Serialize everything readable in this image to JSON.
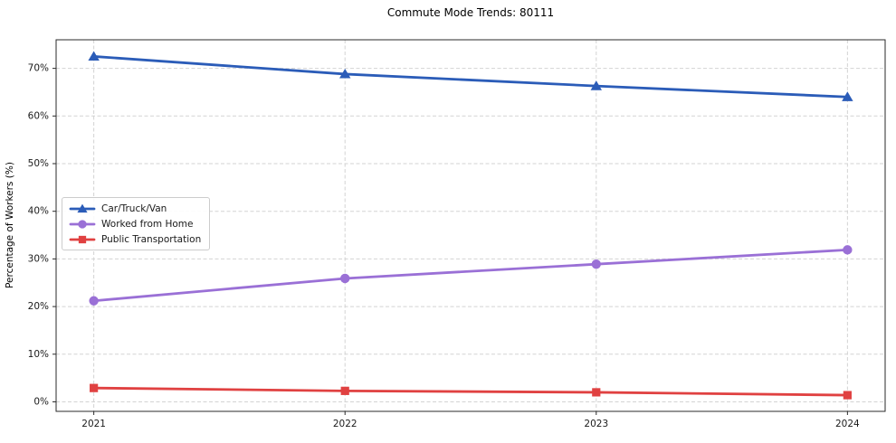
{
  "chart_data": {
    "type": "line",
    "title": "Commute Mode Trends: 80111",
    "xlabel": "",
    "ylabel": "Percentage of Workers (%)",
    "x": [
      2021,
      2022,
      2023,
      2024
    ],
    "x_tick_labels": [
      "2021",
      "2022",
      "2023",
      "2024"
    ],
    "y_ticks": [
      0,
      10,
      20,
      30,
      40,
      50,
      60,
      70
    ],
    "y_tick_labels": [
      "0%",
      "10%",
      "20%",
      "30%",
      "40%",
      "50%",
      "60%",
      "70%"
    ],
    "xlim": [
      2020.85,
      2024.15
    ],
    "ylim": [
      -2,
      76
    ],
    "grid": true,
    "legend_position": "center-left",
    "series": [
      {
        "name": "Car/Truck/Van",
        "color": "#2b5cb8",
        "marker": "triangle-up",
        "values": [
          72.5,
          68.8,
          66.3,
          64.0
        ]
      },
      {
        "name": "Worked from Home",
        "color": "#9a70d6",
        "marker": "circle",
        "values": [
          21.2,
          25.9,
          28.9,
          31.9
        ]
      },
      {
        "name": "Public Transportation",
        "color": "#e04141",
        "marker": "square",
        "values": [
          2.9,
          2.3,
          2.0,
          1.4
        ]
      }
    ],
    "colors": {
      "grid": "#d3d3d3",
      "spine": "#2a2a2a",
      "tick_text": "#1a1a1a"
    }
  }
}
